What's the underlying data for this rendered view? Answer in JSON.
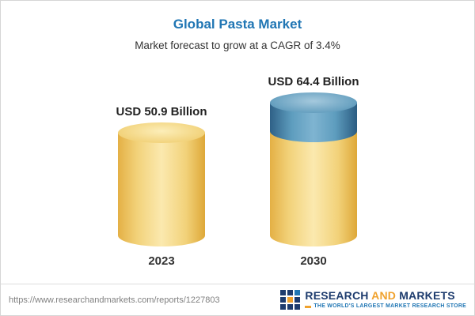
{
  "chart_data": {
    "type": "bar",
    "title": "Global Pasta Market",
    "subtitle": "Market forecast to grow at a CAGR of 3.4%",
    "categories": [
      "2023",
      "2030"
    ],
    "values": [
      50.9,
      64.4
    ],
    "value_labels": [
      "USD 50.9 Billion",
      "USD 64.4 Billion"
    ],
    "unit": "USD Billion",
    "cagr_pct": 3.4,
    "ylim": [
      0,
      64.4
    ],
    "legend": "none",
    "grid": "off",
    "bar_style": "3d-cylinder",
    "growth_segment_color_note": "2030 bar has blue top segment representing growth over 2023"
  },
  "footer": {
    "source_url": "https://www.researchandmarkets.com/reports/1227803",
    "logo": {
      "word1": "RESEARCH",
      "word2": "AND",
      "word3": "MARKETS",
      "tagline": "THE WORLD'S LARGEST MARKET RESEARCH STORE"
    }
  },
  "colors": {
    "title_blue": "#2076b4",
    "bar_yellow": "#f2d37c",
    "bar_blue": "#5e9dbe",
    "logo_navy": "#1e3c6e",
    "logo_orange": "#f0a22e"
  }
}
